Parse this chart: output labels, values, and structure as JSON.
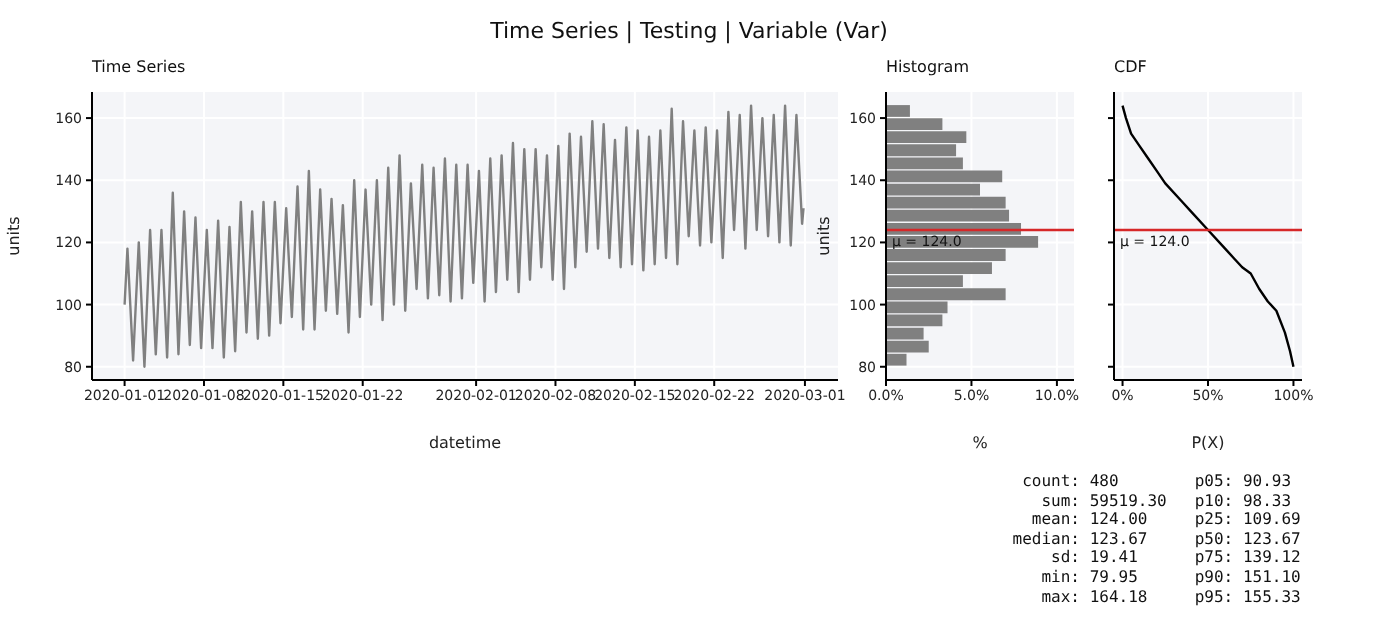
{
  "chart_data": [
    {
      "type": "line",
      "title": "Time Series",
      "xlabel": "datetime",
      "ylabel": "units",
      "color": "#808080",
      "x": [
        "2020-01-01T00:00",
        "2020-01-01T06:00",
        "2020-01-01T18:00",
        "2020-01-02T06:00",
        "2020-01-02T18:00",
        "2020-01-03T06:00",
        "2020-01-03T18:00",
        "2020-01-04T06:00",
        "2020-01-04T18:00",
        "2020-01-05T06:00",
        "2020-01-05T18:00",
        "2020-01-06T06:00",
        "2020-01-06T18:00",
        "2020-01-07T06:00",
        "2020-01-07T18:00",
        "2020-01-08T06:00",
        "2020-01-08T18:00",
        "2020-01-09T06:00",
        "2020-01-09T18:00",
        "2020-01-10T06:00",
        "2020-01-10T18:00",
        "2020-01-11T06:00",
        "2020-01-11T18:00",
        "2020-01-12T06:00",
        "2020-01-12T18:00",
        "2020-01-13T06:00",
        "2020-01-13T18:00",
        "2020-01-14T06:00",
        "2020-01-14T18:00",
        "2020-01-15T06:00",
        "2020-01-15T18:00",
        "2020-01-16T06:00",
        "2020-01-16T18:00",
        "2020-01-17T06:00",
        "2020-01-17T18:00",
        "2020-01-18T06:00",
        "2020-01-18T18:00",
        "2020-01-19T06:00",
        "2020-01-19T18:00",
        "2020-01-20T06:00",
        "2020-01-20T18:00",
        "2020-01-21T06:00",
        "2020-01-21T18:00",
        "2020-01-22T06:00",
        "2020-01-22T18:00",
        "2020-01-23T06:00",
        "2020-01-23T18:00",
        "2020-01-24T06:00",
        "2020-01-24T18:00",
        "2020-01-25T06:00",
        "2020-01-25T18:00",
        "2020-01-26T06:00",
        "2020-01-26T18:00",
        "2020-01-27T06:00",
        "2020-01-27T18:00",
        "2020-01-28T06:00",
        "2020-01-28T18:00",
        "2020-01-29T06:00",
        "2020-01-29T18:00",
        "2020-01-30T06:00",
        "2020-01-30T18:00",
        "2020-01-31T06:00",
        "2020-01-31T18:00",
        "2020-02-01T06:00",
        "2020-02-01T18:00",
        "2020-02-02T06:00",
        "2020-02-02T18:00",
        "2020-02-03T06:00",
        "2020-02-03T18:00",
        "2020-02-04T06:00",
        "2020-02-04T18:00",
        "2020-02-05T06:00",
        "2020-02-05T18:00",
        "2020-02-06T06:00",
        "2020-02-06T18:00",
        "2020-02-07T06:00",
        "2020-02-07T18:00",
        "2020-02-08T06:00",
        "2020-02-08T18:00",
        "2020-02-09T06:00",
        "2020-02-09T18:00",
        "2020-02-10T06:00",
        "2020-02-10T18:00",
        "2020-02-11T06:00",
        "2020-02-11T18:00",
        "2020-02-12T06:00",
        "2020-02-12T18:00",
        "2020-02-13T06:00",
        "2020-02-13T18:00",
        "2020-02-14T06:00",
        "2020-02-14T18:00",
        "2020-02-15T06:00",
        "2020-02-15T18:00",
        "2020-02-16T06:00",
        "2020-02-16T18:00",
        "2020-02-17T06:00",
        "2020-02-17T18:00",
        "2020-02-18T06:00",
        "2020-02-18T18:00",
        "2020-02-19T06:00",
        "2020-02-19T18:00",
        "2020-02-20T06:00",
        "2020-02-20T18:00",
        "2020-02-21T06:00",
        "2020-02-21T18:00",
        "2020-02-22T06:00",
        "2020-02-22T18:00",
        "2020-02-23T06:00",
        "2020-02-23T18:00",
        "2020-02-24T06:00",
        "2020-02-24T18:00",
        "2020-02-25T06:00",
        "2020-02-25T18:00",
        "2020-02-26T06:00",
        "2020-02-26T18:00",
        "2020-02-27T06:00",
        "2020-02-27T18:00",
        "2020-02-28T06:00",
        "2020-02-28T18:00",
        "2020-02-29T06:00",
        "2020-02-29T18:00",
        "2020-02-29T21:00"
      ],
      "values": [
        100,
        118,
        82,
        120,
        80,
        124,
        84,
        124,
        83,
        136,
        84,
        130,
        87,
        128,
        86,
        124,
        86,
        127,
        83,
        125,
        85,
        133,
        91,
        130,
        89,
        133,
        90,
        133,
        94,
        131,
        96,
        138,
        92,
        143,
        92,
        137,
        98,
        134,
        97,
        132,
        91,
        140,
        96,
        137,
        100,
        140,
        95,
        144,
        100,
        148,
        98,
        139,
        105,
        145,
        102,
        144,
        103,
        147,
        101,
        145,
        102,
        145,
        107,
        143,
        101,
        147,
        104,
        148,
        108,
        152,
        104,
        150,
        108,
        150,
        112,
        148,
        108,
        151,
        105,
        155,
        112,
        154,
        117,
        159,
        118,
        158,
        115,
        153,
        112,
        157,
        113,
        156,
        111,
        154,
        113,
        156,
        115,
        163,
        113,
        159,
        122,
        156,
        119,
        157,
        120,
        156,
        115,
        162,
        124,
        161,
        118,
        164,
        124,
        160,
        122,
        161,
        120,
        164,
        119,
        161,
        126,
        131
      ],
      "xlim": [
        "2019-12-29T03:00",
        "2020-03-03T22:00"
      ],
      "xticks": [
        "2020-01-01",
        "2020-01-08",
        "2020-01-15",
        "2020-01-22",
        "2020-02-01",
        "2020-02-08",
        "2020-02-15",
        "2020-02-22",
        "2020-03-01"
      ],
      "ylim": [
        75.74,
        168.39
      ],
      "yticks": [
        80,
        100,
        120,
        140,
        160
      ],
      "grid": true
    },
    {
      "type": "histogram",
      "orientation": "horizontal",
      "title": "Histogram",
      "xlabel": "%",
      "ylabel": "units",
      "color": "#808080",
      "bins": [
        79.95,
        84.16,
        88.37,
        92.58,
        96.8,
        101.01,
        105.22,
        109.43,
        113.64,
        117.85,
        122.07,
        126.28,
        130.49,
        134.7,
        138.91,
        143.12,
        147.33,
        151.55,
        155.76,
        159.97,
        164.18
      ],
      "values": [
        1.2,
        2.5,
        2.2,
        3.3,
        3.6,
        7.0,
        4.5,
        6.2,
        7.0,
        8.9,
        7.9,
        7.2,
        7.0,
        5.5,
        6.8,
        4.5,
        4.1,
        4.7,
        3.3,
        1.4
      ],
      "xlim": [
        0,
        11
      ],
      "xticks": [
        {
          "value": 0,
          "label": "0.0%"
        },
        {
          "value": 5,
          "label": "5.0%"
        },
        {
          "value": 10,
          "label": "10.0%"
        }
      ],
      "ylim": [
        75.74,
        168.39
      ],
      "yticks": [
        80,
        100,
        120,
        140,
        160
      ],
      "ref_lines": [
        {
          "axis": "y",
          "value": 124,
          "label": "μ = 124.0",
          "color": "#d62728"
        }
      ],
      "grid": true
    },
    {
      "type": "line",
      "title": "CDF",
      "xlabel": "P(X)",
      "color": "#000000",
      "x": [
        0,
        2,
        5,
        10,
        15,
        20,
        25,
        35,
        40,
        50,
        60,
        65,
        70,
        75,
        80,
        85,
        90,
        95,
        98,
        100
      ],
      "values": [
        164,
        160,
        155,
        151,
        147,
        143,
        139,
        133,
        130,
        124,
        118,
        115,
        112,
        110,
        105,
        101,
        98,
        91,
        85,
        80
      ],
      "xlim": [
        -5,
        105
      ],
      "xticks": [
        {
          "value": 0,
          "label": "0%"
        },
        {
          "value": 50,
          "label": "50%"
        },
        {
          "value": 100,
          "label": "100%"
        }
      ],
      "ylim": [
        75.74,
        168.39
      ],
      "yticks": [
        80,
        100,
        120,
        140,
        160
      ],
      "tick_labels": "x",
      "ref_lines": [
        {
          "axis": "y",
          "value": 124,
          "label": "μ = 124.0",
          "color": "#d62728"
        }
      ],
      "grid": true
    },
    {
      "type": "other",
      "title": "Time Series | Testing | Variable (Var)",
      "annotations": [
        "count: 480",
        "sum: 59519.30",
        "mean: 124.00",
        "median: 123.67",
        "sd: 19.41",
        "min: 79.95",
        "max: 164.18",
        "p05: 90.93",
        "p10: 98.33",
        "p25: 109.69",
        "p50: 123.67",
        "p75: 139.12",
        "p90: 151.10",
        "p95: 155.33"
      ]
    }
  ]
}
